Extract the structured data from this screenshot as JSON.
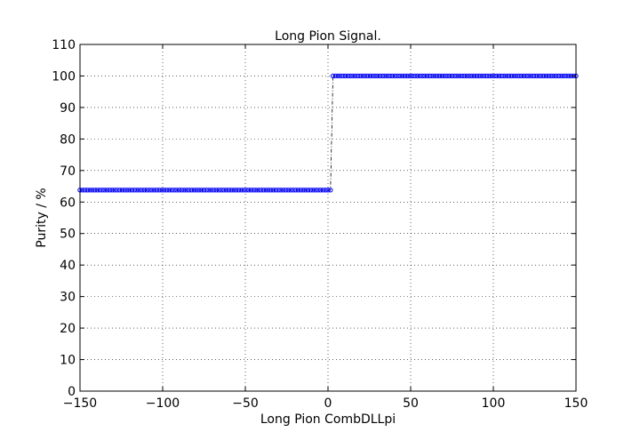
{
  "chart_data": {
    "type": "scatter",
    "title": "Long Pion Signal.",
    "xlabel": "Long Pion CombDLLpi",
    "ylabel": "Purity / %",
    "xlim": [
      -150,
      150
    ],
    "ylim": [
      0,
      110
    ],
    "xticks": [
      -150,
      -100,
      -50,
      0,
      50,
      100,
      150
    ],
    "yticks": [
      0,
      10,
      20,
      30,
      40,
      50,
      60,
      70,
      80,
      90,
      100,
      110
    ],
    "xtick_labels": [
      "−150",
      "−100",
      "−50",
      "0",
      "50",
      "100",
      "150"
    ],
    "ytick_labels": [
      "0",
      "10",
      "20",
      "30",
      "40",
      "50",
      "60",
      "70",
      "80",
      "90",
      "100",
      "110"
    ],
    "grid": true,
    "marker_color": "#0000ff",
    "series": [
      {
        "segments": [
          {
            "x_start": -150,
            "x_end": 1.5,
            "x_step": 1.5,
            "y": 63.8
          },
          {
            "x_start": 3,
            "x_end": 150,
            "x_step": 1.5,
            "y": 100
          }
        ]
      }
    ]
  }
}
